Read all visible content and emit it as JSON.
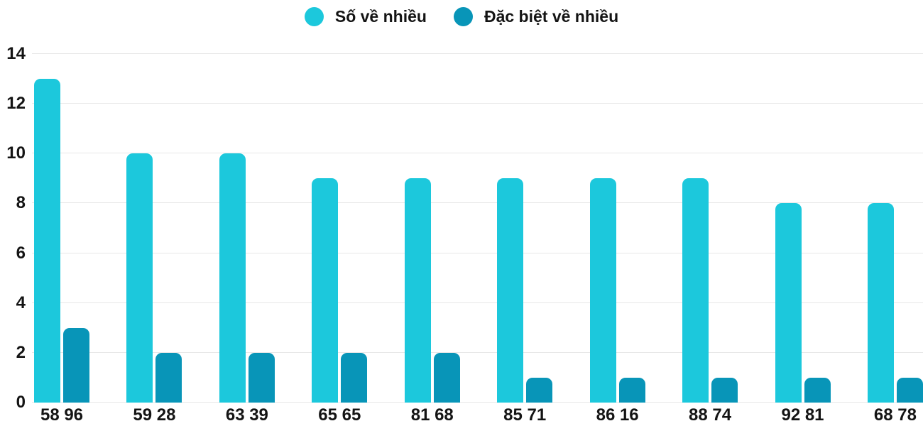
{
  "background": "#ffffff",
  "text_color": "#141414",
  "gridline_color": "#e7e7e7",
  "legend": {
    "items": [
      {
        "label": "Số về nhiều",
        "color": "#1CC8DC"
      },
      {
        "label": "Đặc biệt về nhiều",
        "color": "#0895B8"
      }
    ]
  },
  "chart_data": {
    "type": "bar",
    "title": "",
    "xlabel": "",
    "ylabel": "",
    "categories": [
      "58 96",
      "59 28",
      "63 39",
      "65 65",
      "81 68",
      "85 71",
      "86 16",
      "88 74",
      "92 81",
      "68 78"
    ],
    "series": [
      {
        "name": "Số về nhiều",
        "color": "#1CC8DC",
        "values": [
          13,
          10,
          10,
          9,
          9,
          9,
          9,
          9,
          8,
          8
        ]
      },
      {
        "name": "Đặc biệt về nhiều",
        "color": "#0895B8",
        "values": [
          3,
          2,
          2,
          2,
          2,
          1,
          1,
          1,
          1,
          1
        ]
      }
    ],
    "yticks": [
      0,
      2,
      4,
      6,
      8,
      10,
      12,
      14
    ],
    "ylim": [
      0,
      14
    ],
    "grid": true,
    "legend_position": "top-center"
  }
}
